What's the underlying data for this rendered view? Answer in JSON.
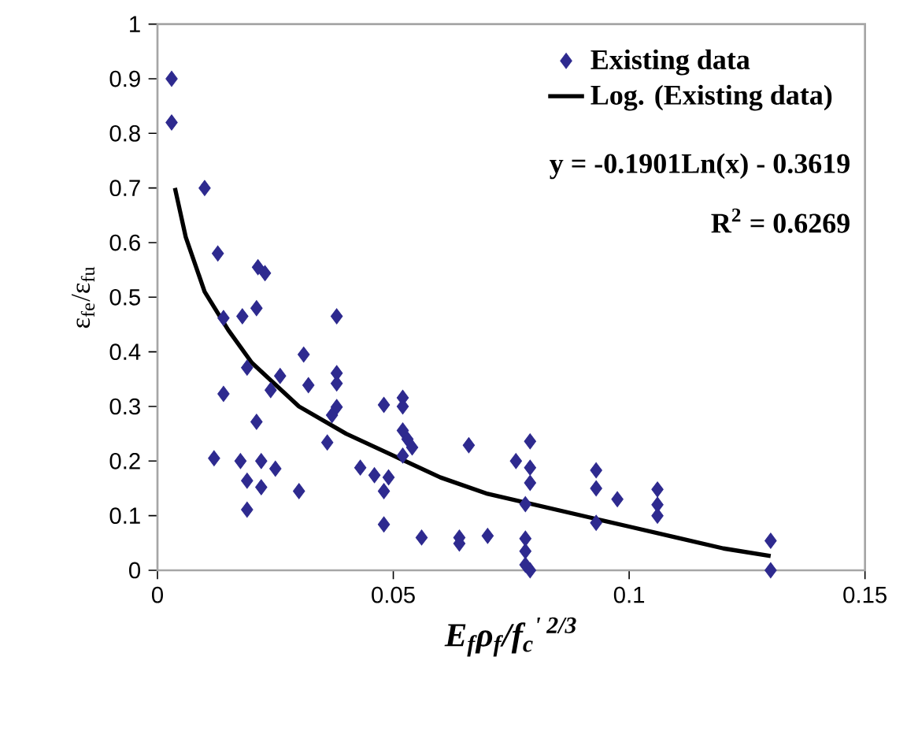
{
  "chart_data": {
    "type": "scatter",
    "xlabel": "E$_{f}$ρ$_{f}$/f$_{c}$$^{' 2/3}$",
    "ylabel": "ε$_{fe}$/ε$_{fu}$",
    "xlim": [
      0,
      0.15
    ],
    "ylim": [
      0,
      1
    ],
    "xticks": [
      0,
      0.05,
      0.1,
      0.15
    ],
    "yticks": [
      0,
      0.1,
      0.2,
      0.3,
      0.4,
      0.5,
      0.6,
      0.7,
      0.8,
      0.9,
      1
    ],
    "grid": false,
    "legend": "top right",
    "annotations": [
      "y = -0.1901Ln(x) - 0.3619",
      "R$^{2}$ = 0.6269"
    ],
    "series": [
      {
        "name": "Existing data",
        "marker": "diamond",
        "color": "#2e2a8f",
        "x": [
          0.003,
          0.003,
          0.01,
          0.0128,
          0.0213,
          0.0228,
          0.021,
          0.018,
          0.014,
          0.038,
          0.031,
          0.019,
          0.026,
          0.038,
          0.038,
          0.032,
          0.024,
          0.014,
          0.038,
          0.037,
          0.048,
          0.052,
          0.052,
          0.021,
          0.052,
          0.053,
          0.054,
          0.052,
          0.066,
          0.036,
          0.012,
          0.0176,
          0.022,
          0.025,
          0.043,
          0.046,
          0.049,
          0.048,
          0.019,
          0.022,
          0.03,
          0.019,
          0.048,
          0.056,
          0.064,
          0.064,
          0.07,
          0.079,
          0.076,
          0.079,
          0.079,
          0.078,
          0.078,
          0.078,
          0.078,
          0.079,
          0.093,
          0.093,
          0.0975,
          0.093,
          0.106,
          0.106,
          0.106,
          0.13,
          0.13
        ],
        "values": [
          0.9,
          0.82,
          0.7,
          0.58,
          0.555,
          0.544,
          0.48,
          0.465,
          0.462,
          0.465,
          0.395,
          0.371,
          0.356,
          0.361,
          0.342,
          0.339,
          0.33,
          0.323,
          0.299,
          0.284,
          0.303,
          0.316,
          0.3,
          0.272,
          0.256,
          0.24,
          0.225,
          0.21,
          0.229,
          0.234,
          0.205,
          0.2,
          0.2,
          0.186,
          0.188,
          0.174,
          0.17,
          0.145,
          0.164,
          0.152,
          0.145,
          0.111,
          0.084,
          0.06,
          0.06,
          0.049,
          0.063,
          0.236,
          0.2,
          0.188,
          0.16,
          0.121,
          0.058,
          0.035,
          0.01,
          0.0,
          0.183,
          0.15,
          0.13,
          0.087,
          0.148,
          0.12,
          0.1,
          0.054,
          0.0
        ]
      },
      {
        "name": "Log. (Existing data)",
        "type": "line",
        "color": "#000000",
        "x": [
          0.0037,
          0.006,
          0.01,
          0.015,
          0.02,
          0.03,
          0.04,
          0.05,
          0.06,
          0.07,
          0.08,
          0.09,
          0.1,
          0.11,
          0.12,
          0.13
        ],
        "values": [
          0.7,
          0.61,
          0.51,
          0.44,
          0.38,
          0.3,
          0.25,
          0.21,
          0.17,
          0.14,
          0.12,
          0.1,
          0.08,
          0.06,
          0.04,
          0.026
        ]
      }
    ]
  }
}
